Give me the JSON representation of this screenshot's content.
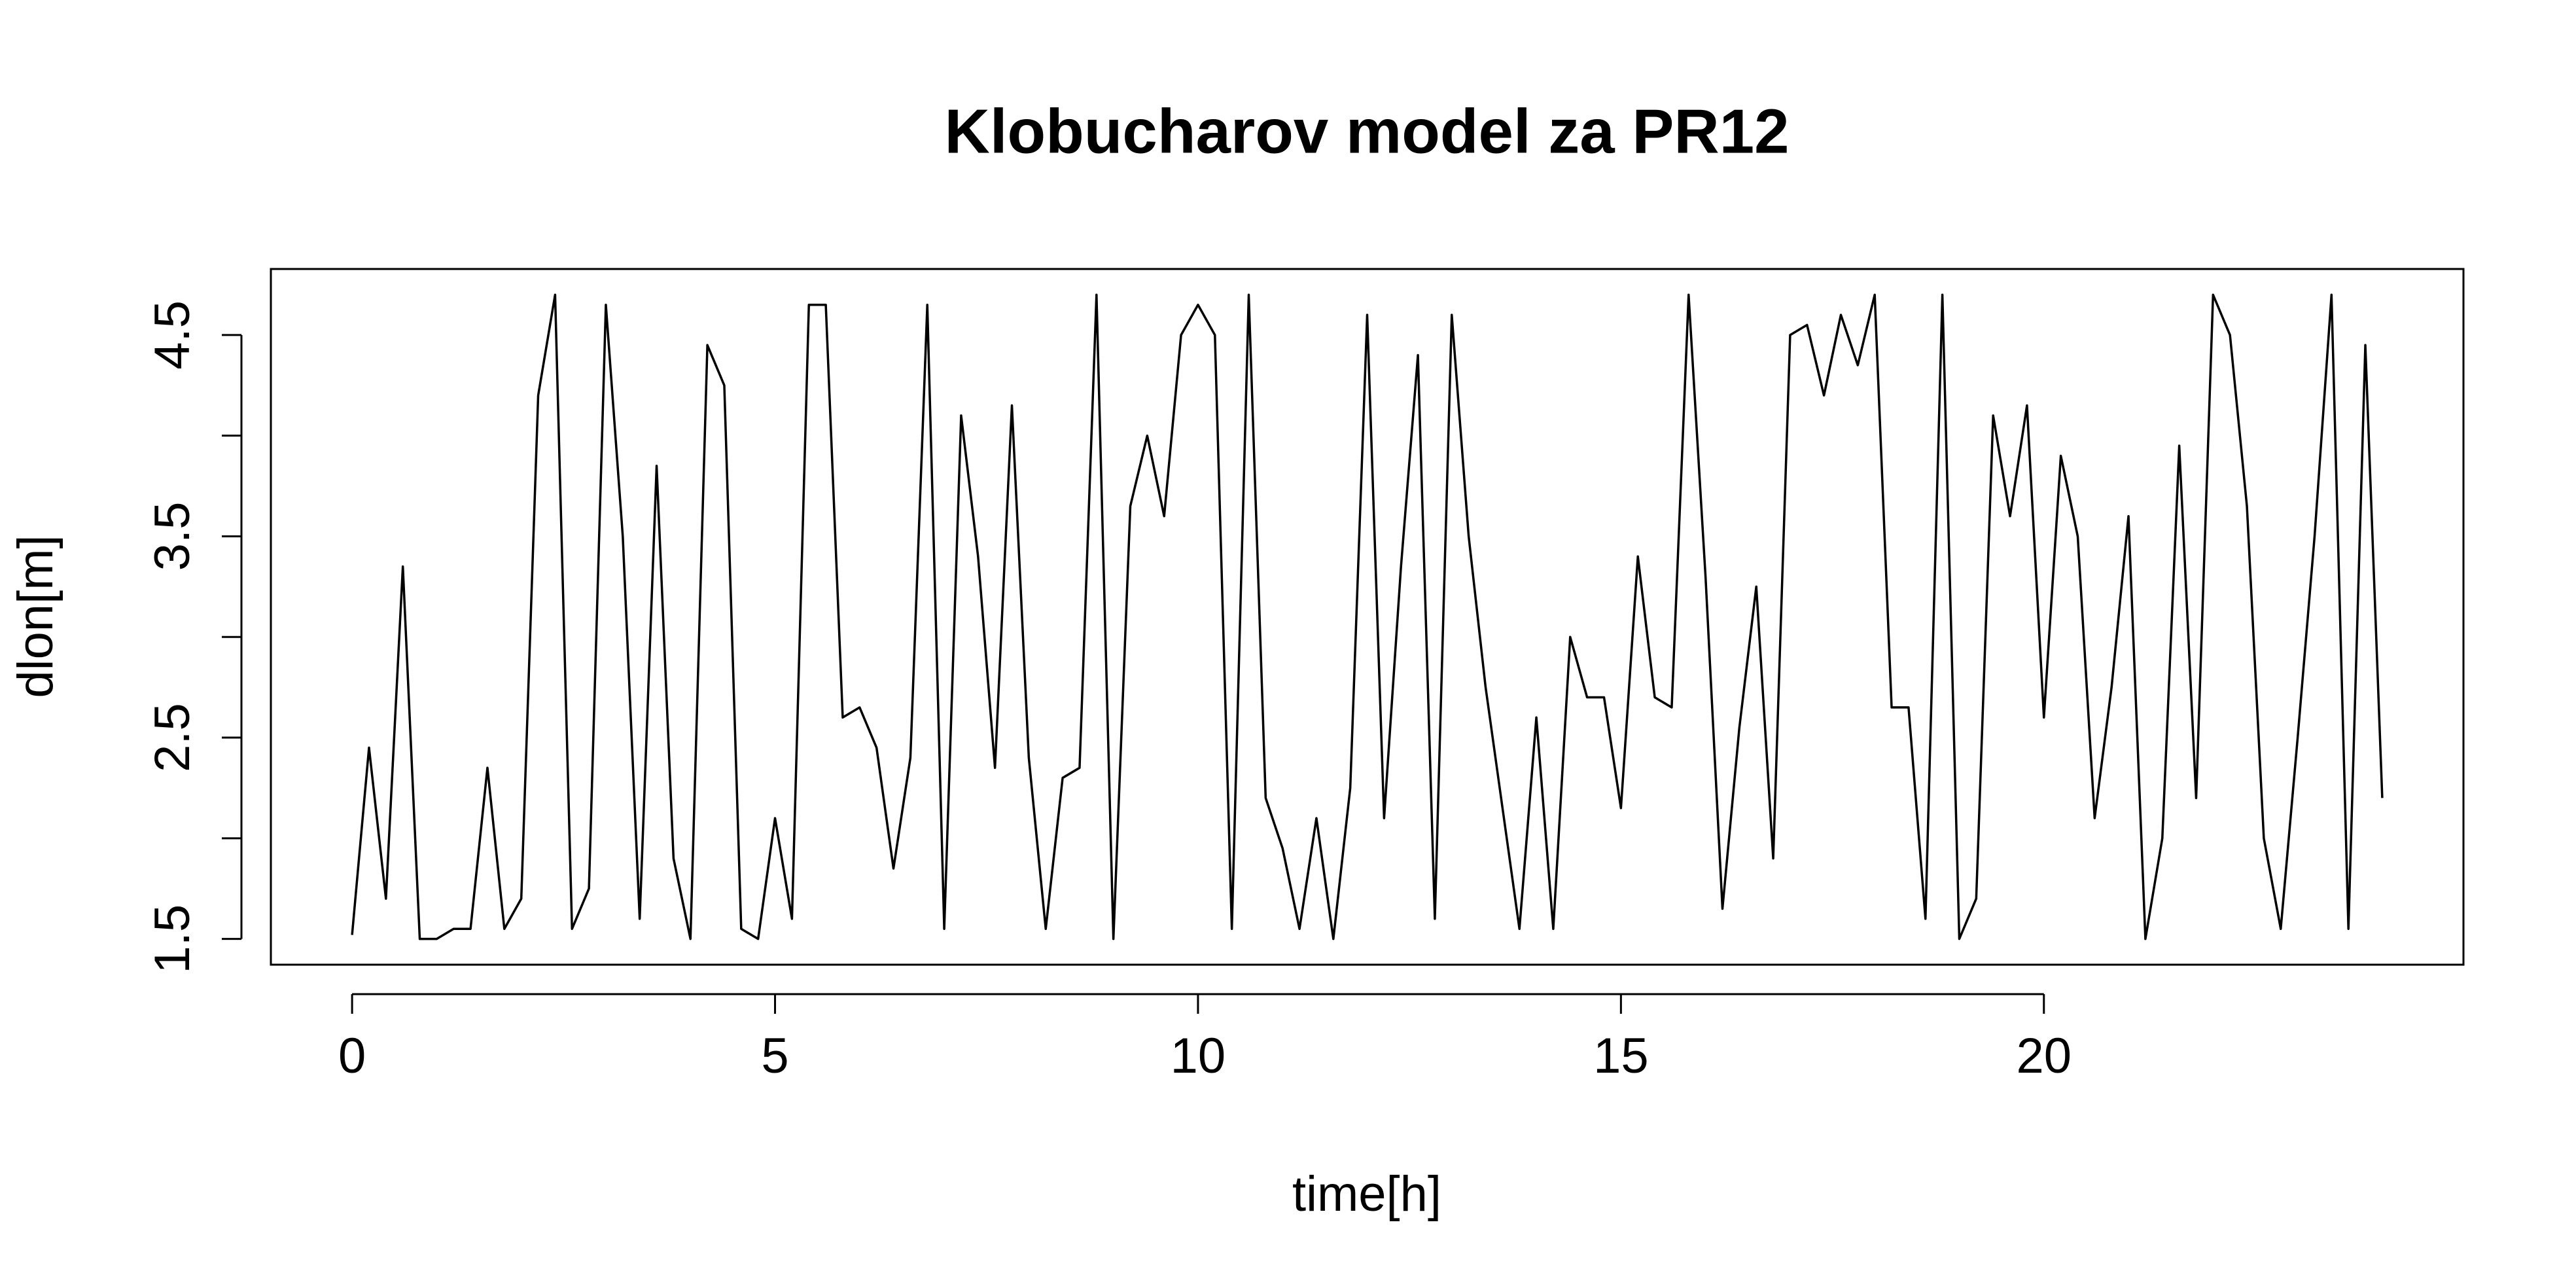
{
  "chart_data": {
    "type": "line",
    "title": "Klobucharov model za PR12",
    "xlabel": "time[h]",
    "ylabel": "dlon[m]",
    "x": [
      0,
      0.2,
      0.4,
      0.6,
      0.8,
      1,
      1.2,
      1.4,
      1.6,
      1.8,
      2,
      2.2,
      2.4,
      2.6,
      2.8,
      3,
      3.2,
      3.4,
      3.6,
      3.8,
      4,
      4.2,
      4.4,
      4.6,
      4.8,
      5,
      5.2,
      5.4,
      5.6,
      5.8,
      6,
      6.2,
      6.4,
      6.6,
      6.8,
      7,
      7.2,
      7.4,
      7.6,
      7.8,
      8,
      8.2,
      8.4,
      8.6,
      8.8,
      9,
      9.2,
      9.4,
      9.6,
      9.8,
      10,
      10.2,
      10.4,
      10.6,
      10.8,
      11,
      11.2,
      11.4,
      11.6,
      11.8,
      12,
      12.2,
      12.4,
      12.6,
      12.8,
      13,
      13.2,
      13.4,
      13.6,
      13.8,
      14,
      14.2,
      14.4,
      14.6,
      14.8,
      15,
      15.2,
      15.4,
      15.6,
      15.8,
      16,
      16.2,
      16.4,
      16.6,
      16.8,
      17,
      17.2,
      17.4,
      17.6,
      17.8,
      18,
      18.2,
      18.4,
      18.6,
      18.8,
      19,
      19.2,
      19.4,
      19.6,
      19.8,
      20,
      20.2,
      20.4,
      20.6,
      20.8,
      21,
      21.2,
      21.4,
      21.6,
      21.8,
      22,
      22.2,
      22.4,
      22.6,
      22.8,
      23,
      23.2,
      23.4,
      23.6,
      23.8,
      24
    ],
    "values": [
      1.52,
      2.45,
      1.7,
      3.35,
      1.5,
      1.5,
      1.55,
      1.55,
      2.35,
      1.55,
      1.7,
      4.2,
      4.7,
      1.55,
      1.75,
      4.65,
      3.5,
      1.6,
      3.85,
      1.9,
      1.5,
      4.45,
      4.25,
      1.55,
      1.5,
      2.1,
      1.6,
      4.65,
      4.65,
      2.6,
      2.65,
      2.45,
      1.85,
      2.4,
      4.65,
      1.55,
      4.1,
      3.4,
      2.35,
      4.15,
      2.4,
      1.55,
      2.3,
      2.35,
      4.7,
      1.5,
      3.65,
      4.0,
      3.6,
      4.5,
      4.65,
      4.5,
      1.55,
      4.7,
      2.2,
      1.95,
      1.55,
      2.1,
      1.5,
      2.25,
      4.6,
      2.1,
      3.35,
      4.4,
      1.6,
      4.6,
      3.5,
      2.75,
      2.15,
      1.55,
      2.6,
      1.55,
      3.0,
      2.7,
      2.7,
      2.15,
      3.4,
      2.7,
      2.65,
      4.7,
      3.3,
      1.65,
      2.55,
      3.25,
      1.9,
      4.5,
      4.55,
      4.2,
      4.6,
      4.35,
      4.7,
      2.65,
      2.65,
      1.6,
      4.7,
      1.5,
      1.7,
      4.1,
      3.6,
      4.15,
      2.6,
      3.9,
      3.5,
      2.1,
      2.75,
      3.6,
      1.5,
      2.0,
      3.95,
      2.2,
      4.7,
      4.5,
      3.65,
      2.0,
      1.55,
      2.5,
      3.5,
      4.7,
      1.55,
      4.45,
      2.2
    ],
    "color": "#000000",
    "xlim": [
      -0.96,
      24.96
    ],
    "ylim": [
      1.372,
      4.828
    ],
    "xticks": [
      0,
      5,
      10,
      15,
      20
    ],
    "yticks": [
      1.5,
      {
        "value": 2,
        "label": null
      },
      2.5,
      {
        "value": 3,
        "label": null
      },
      3.5,
      {
        "value": 4,
        "label": null
      },
      4.5
    ],
    "grid": false
  }
}
